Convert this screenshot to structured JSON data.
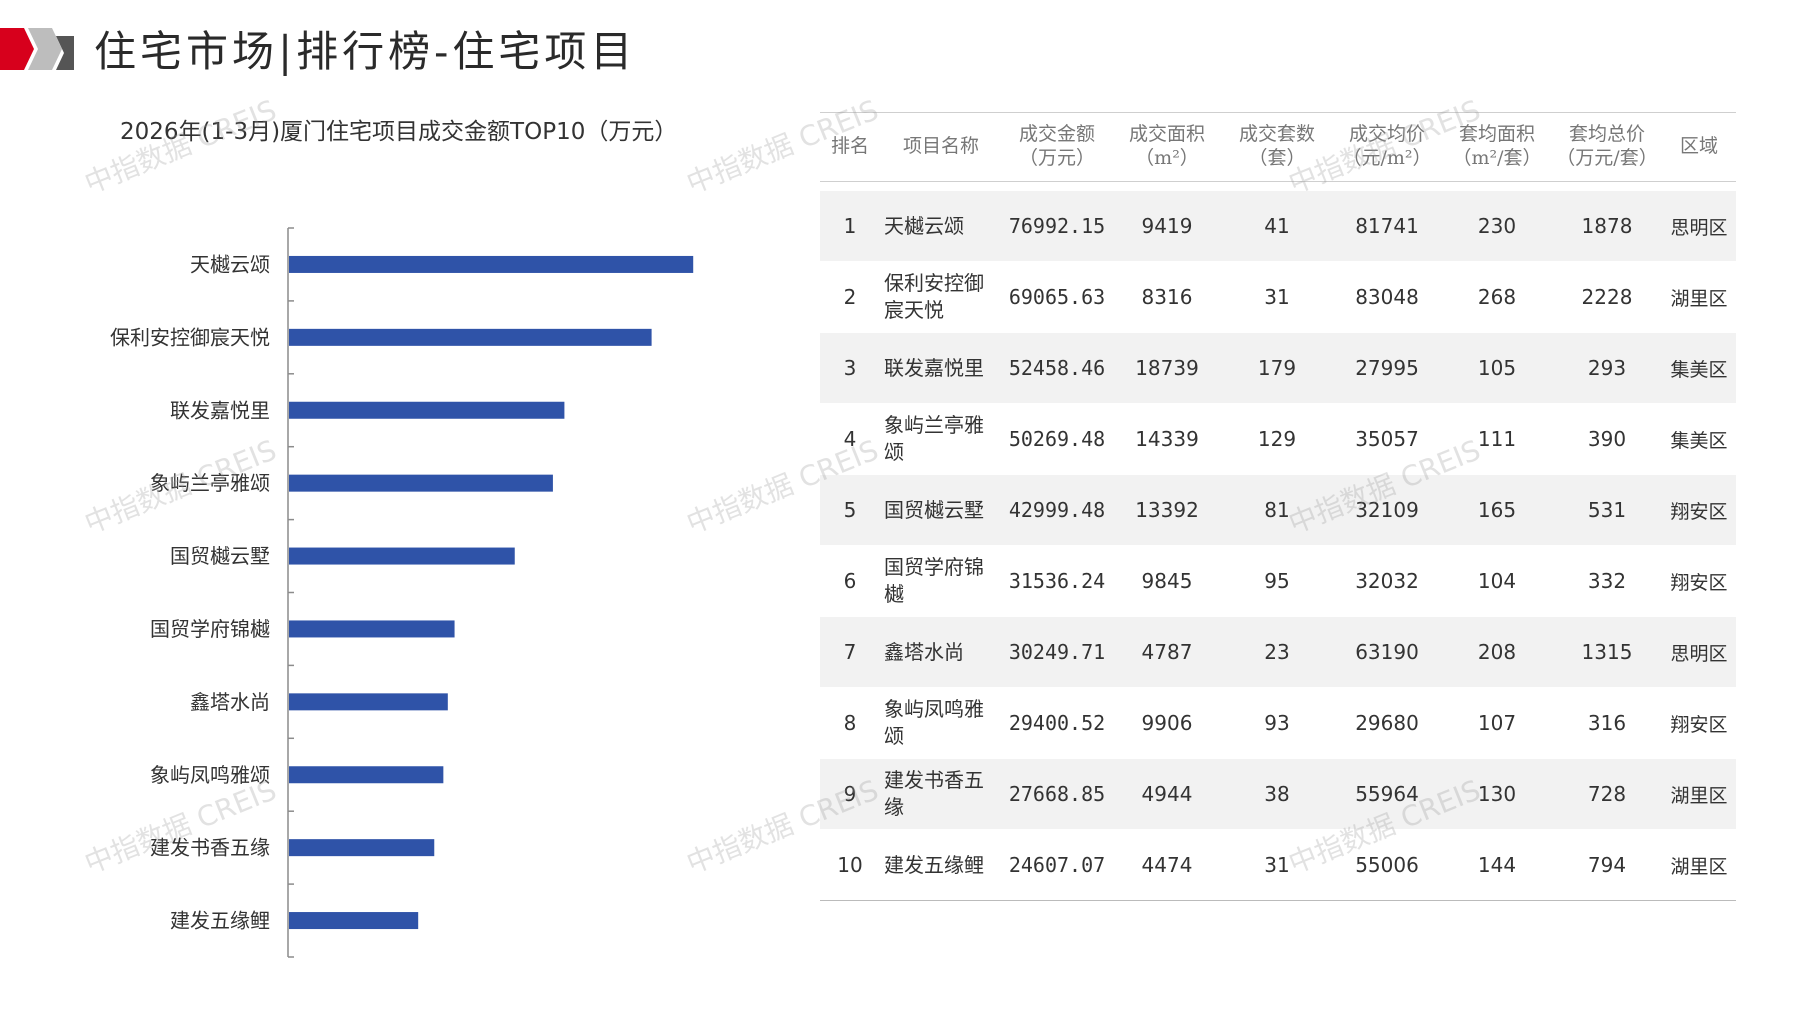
{
  "header": {
    "title": "住宅市场|排行榜-住宅项目",
    "logo_colors": [
      "#d7001c",
      "#9a9a9a",
      "#5a5a5a"
    ]
  },
  "watermark": "中指数据 CREIS",
  "chart_data": {
    "type": "bar",
    "orientation": "horizontal",
    "title": "2026年(1-3月)厦门住宅项目成交金额TOP10（万元）",
    "categories": [
      "天樾云颂",
      "保利安控御宸天悦",
      "联发嘉悦里",
      "象屿兰亭雅颂",
      "国贸樾云墅",
      "国贸学府锦樾",
      "鑫塔水尚",
      "象屿凤鸣雅颂",
      "建发书香五缘",
      "建发五缘鲤"
    ],
    "values": [
      76992.15,
      69065.63,
      52458.46,
      50269.48,
      42999.48,
      31536.24,
      30249.71,
      29400.52,
      27668.85,
      24607.07
    ],
    "xlim": [
      0,
      80000
    ],
    "bar_color": "#2f53a8",
    "grid": false,
    "legend": "none"
  },
  "table": {
    "headers": [
      [
        "排名",
        ""
      ],
      [
        "项目名称",
        ""
      ],
      [
        "成交金额",
        "（万元）"
      ],
      [
        "成交面积",
        "（m²）"
      ],
      [
        "成交套数",
        "（套）"
      ],
      [
        "成交均价",
        "（元/m²）"
      ],
      [
        "套均面积",
        "（m²/套）"
      ],
      [
        "套均总价",
        "（万元/套）"
      ],
      [
        "区域",
        ""
      ]
    ],
    "rows": [
      [
        "1",
        "天樾云颂",
        "76992.15",
        "9419",
        "41",
        "81741",
        "230",
        "1878",
        "思明区"
      ],
      [
        "2",
        "保利安控御宸天悦",
        "69065.63",
        "8316",
        "31",
        "83048",
        "268",
        "2228",
        "湖里区"
      ],
      [
        "3",
        "联发嘉悦里",
        "52458.46",
        "18739",
        "179",
        "27995",
        "105",
        "293",
        "集美区"
      ],
      [
        "4",
        "象屿兰亭雅颂",
        "50269.48",
        "14339",
        "129",
        "35057",
        "111",
        "390",
        "集美区"
      ],
      [
        "5",
        "国贸樾云墅",
        "42999.48",
        "13392",
        "81",
        "32109",
        "165",
        "531",
        "翔安区"
      ],
      [
        "6",
        "国贸学府锦樾",
        "31536.24",
        "9845",
        "95",
        "32032",
        "104",
        "332",
        "翔安区"
      ],
      [
        "7",
        "鑫塔水尚",
        "30249.71",
        "4787",
        "23",
        "63190",
        "208",
        "1315",
        "思明区"
      ],
      [
        "8",
        "象屿凤鸣雅颂",
        "29400.52",
        "9906",
        "93",
        "29680",
        "107",
        "316",
        "翔安区"
      ],
      [
        "9",
        "建发书香五缘",
        "27668.85",
        "4944",
        "38",
        "55964",
        "130",
        "728",
        "湖里区"
      ],
      [
        "10",
        "建发五缘鲤",
        "24607.07",
        "4474",
        "31",
        "55006",
        "144",
        "794",
        "湖里区"
      ]
    ]
  }
}
